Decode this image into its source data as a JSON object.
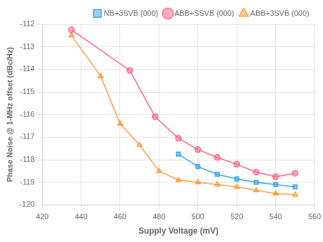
{
  "chart_data": {
    "type": "line",
    "xlabel": "Supply Voltage (mV)",
    "ylabel": "Phase Noise @ 1-MHz offset (dBc/Hz)",
    "xlim": [
      420,
      560
    ],
    "ylim": [
      -120,
      -112
    ],
    "xticks": [
      420,
      440,
      460,
      480,
      500,
      520,
      540,
      560
    ],
    "yticks": [
      -120,
      -119,
      -118,
      -117,
      -116,
      -115,
      -114,
      -113,
      -112
    ],
    "grid": true,
    "legend": "upper right",
    "series": [
      {
        "name": "NB+3SVB (000)",
        "marker": "square",
        "x": [
          490,
          500,
          510,
          520,
          530,
          540,
          550
        ],
        "values": [
          -117.75,
          -118.3,
          -118.65,
          -118.85,
          -119.0,
          -119.1,
          -119.2
        ]
      },
      {
        "name": "ABB+SSVB (000)",
        "marker": "circle",
        "x": [
          435,
          465,
          478,
          490,
          500,
          510,
          520,
          530,
          540,
          550
        ],
        "values": [
          -112.25,
          -114.05,
          -116.1,
          -117.05,
          -117.55,
          -117.9,
          -118.2,
          -118.55,
          -118.75,
          -118.6
        ]
      },
      {
        "name": "ABB+3SVB (000)",
        "marker": "triangle",
        "x": [
          435,
          450,
          460,
          470,
          480,
          490,
          500,
          510,
          520,
          530,
          540,
          550
        ],
        "values": [
          -112.5,
          -114.3,
          -116.4,
          -117.35,
          -118.5,
          -118.9,
          -119.0,
          -119.1,
          -119.2,
          -119.35,
          -119.5,
          -119.55
        ]
      }
    ]
  }
}
